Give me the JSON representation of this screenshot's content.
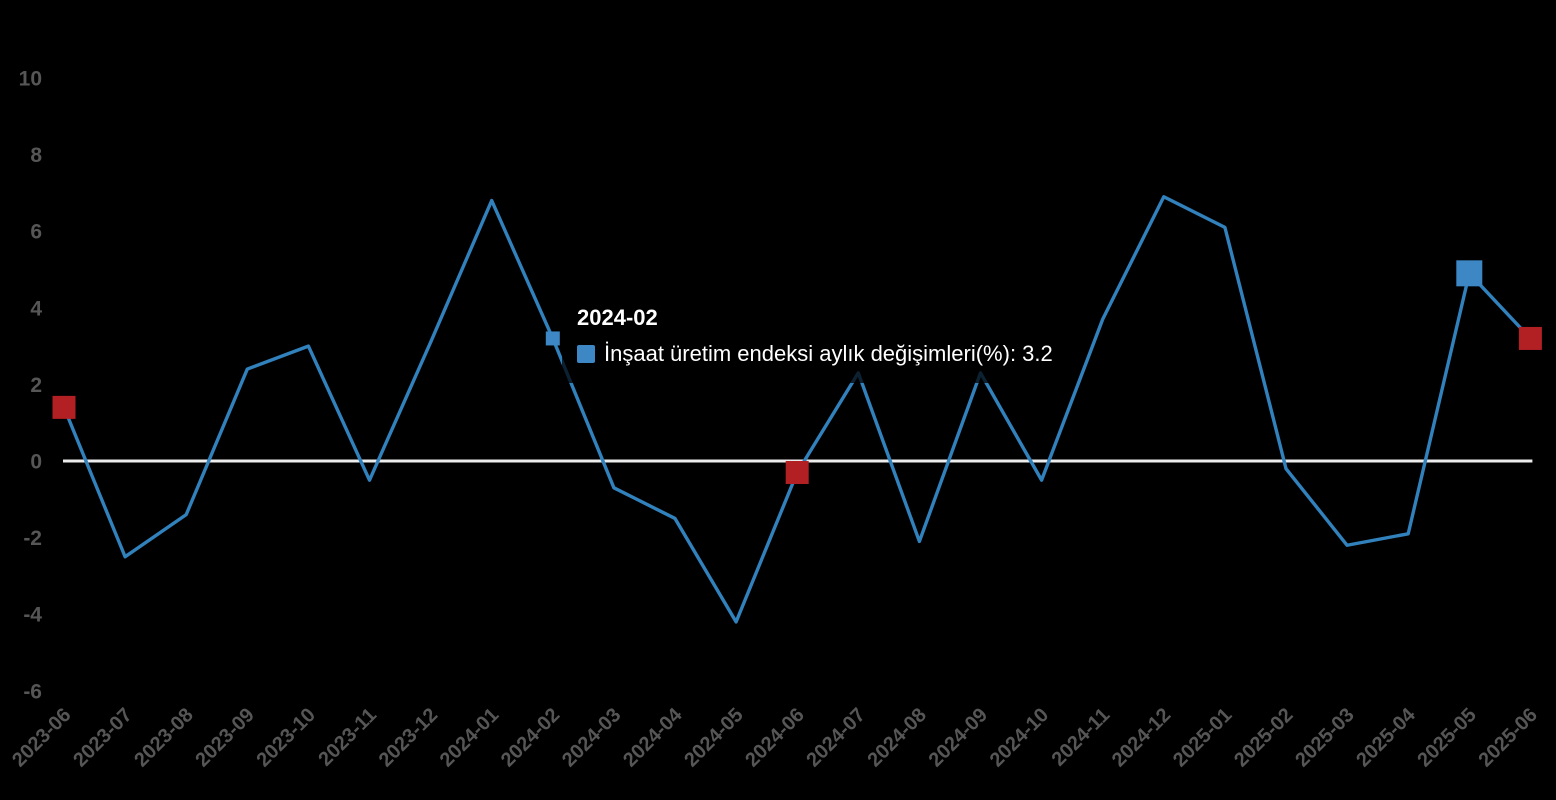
{
  "chart_data": {
    "type": "line",
    "title": "",
    "x": [
      "2023-06",
      "2023-07",
      "2023-08",
      "2023-09",
      "2023-10",
      "2023-11",
      "2023-12",
      "2024-01",
      "2024-02",
      "2024-03",
      "2024-04",
      "2024-05",
      "2024-06",
      "2024-07",
      "2024-08",
      "2024-09",
      "2024-10",
      "2024-11",
      "2024-12",
      "2025-01",
      "2025-02",
      "2025-03",
      "2025-04",
      "2025-05",
      "2025-06"
    ],
    "series": [
      {
        "name": "İnşaat üretim endeksi aylık değişimleri(%)",
        "values": [
          1.4,
          -2.5,
          -1.4,
          2.4,
          3.0,
          -0.5,
          3.1,
          6.8,
          3.2,
          -0.7,
          -1.5,
          -4.2,
          -0.3,
          2.3,
          -2.1,
          2.3,
          -0.5,
          3.7,
          6.9,
          6.1,
          -0.2,
          -2.2,
          -1.9,
          4.9,
          3.2
        ]
      }
    ],
    "ylim": [
      -6,
      10
    ],
    "yticks": [
      10,
      8,
      6,
      4,
      2,
      0,
      -2,
      -4,
      -6
    ],
    "grid": "zero-line-only",
    "legend_position": "none",
    "x_label_rotation": 45,
    "markers": {
      "red_square_points": [
        "2023-06",
        "2024-06",
        "2025-06"
      ],
      "highlight_blue_point": "2025-05",
      "tooltip_point": "2024-02"
    },
    "colors": {
      "background": "#000000",
      "line": "#3181bd",
      "red_marker": "#b22024",
      "blue_marker": "#3d87c5",
      "zero_line": "#ececec",
      "axis_label": "#565656",
      "tooltip_text": "#ffffff"
    }
  },
  "tooltip": {
    "title": "2024-02",
    "series_label": "İnşaat üretim endeksi aylık değişimleri(%)",
    "separator": ": ",
    "value": "3.2"
  }
}
